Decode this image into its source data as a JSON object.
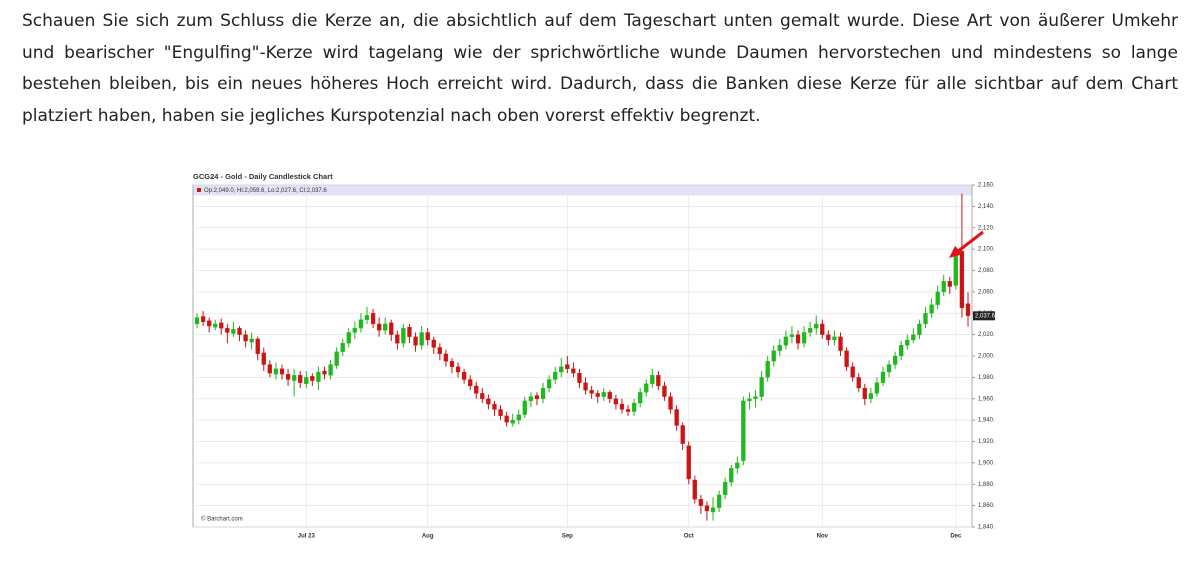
{
  "paragraph": "Schauen Sie sich zum Schluss die Kerze an, die absichtlich auf dem Tageschart unten gemalt wurde. Diese Art von äußerer Umkehr und bearischer \"Engulfing\"-Kerze wird tagelang wie der sprichwörtliche wunde Daumen hervorstechen und mindestens so lange bestehen bleiben, bis ein neues höheres Hoch erreicht wird. Dadurch, dass die Banken diese Kerze für alle sichtbar auf dem Chart platziert haben, haben sie jegliches Kurspotenzial nach oben vorerst effektiv begrenzt.",
  "chart_data": {
    "type": "candlestick",
    "title": "GCG24 - Gold - Daily Candlestick Chart",
    "legend_text": "Op:2,049.0, Hi:2,059.6, Lo:2,027.6, Cl:2,037.6",
    "source": "© Barchart.com",
    "up_color": "#1fb81f",
    "down_color": "#cc1414",
    "grid": true,
    "ylim": [
      1840,
      2160
    ],
    "yticks": [
      {
        "value": 1840,
        "label": "1,840.0"
      },
      {
        "value": 1860,
        "label": "1,860.0"
      },
      {
        "value": 1880,
        "label": "1,880.0"
      },
      {
        "value": 1900,
        "label": "1,900.0"
      },
      {
        "value": 1920,
        "label": "1,920.0"
      },
      {
        "value": 1940,
        "label": "1,940.0"
      },
      {
        "value": 1960,
        "label": "1,960.0"
      },
      {
        "value": 1980,
        "label": "1,980.0"
      },
      {
        "value": 2000,
        "label": "2,000.0"
      },
      {
        "value": 2020,
        "label": "2,020.0"
      },
      {
        "value": 2040,
        "label": "2,040.0"
      },
      {
        "value": 2060,
        "label": "2,060.0"
      },
      {
        "value": 2080,
        "label": "2,080.0"
      },
      {
        "value": 2100,
        "label": "2,100.0"
      },
      {
        "value": 2120,
        "label": "2,120.0"
      },
      {
        "value": 2140,
        "label": "2,140.0"
      },
      {
        "value": 2160,
        "label": "2,160.0"
      }
    ],
    "last_price": {
      "value": 2037.6,
      "label": "2,037.6"
    },
    "categories": [
      null,
      null,
      null,
      null,
      null,
      null,
      null,
      null,
      null,
      null,
      null,
      null,
      null,
      null,
      null,
      null,
      null,
      null,
      "Jul 23",
      null,
      null,
      null,
      null,
      null,
      null,
      null,
      null,
      null,
      null,
      null,
      null,
      null,
      null,
      null,
      null,
      null,
      null,
      null,
      "Aug",
      null,
      null,
      null,
      null,
      null,
      null,
      null,
      null,
      null,
      null,
      null,
      null,
      null,
      null,
      null,
      null,
      null,
      null,
      null,
      null,
      null,
      null,
      "Sep",
      null,
      null,
      null,
      null,
      null,
      null,
      null,
      null,
      null,
      null,
      null,
      null,
      null,
      null,
      null,
      null,
      null,
      null,
      null,
      "Oct",
      null,
      null,
      null,
      null,
      null,
      null,
      null,
      null,
      null,
      null,
      null,
      null,
      null,
      null,
      null,
      null,
      null,
      null,
      null,
      null,
      null,
      "Nov",
      null,
      null,
      null,
      null,
      null,
      null,
      null,
      null,
      null,
      null,
      null,
      null,
      null,
      null,
      null,
      null,
      null,
      null,
      null,
      null,
      null,
      "Dec",
      null,
      null
    ],
    "candles": [
      [
        2030,
        2040,
        2026,
        2036
      ],
      [
        2037,
        2042,
        2028,
        2032
      ],
      [
        2033,
        2036,
        2022,
        2028
      ],
      [
        2027,
        2034,
        2024,
        2030
      ],
      [
        2031,
        2035,
        2020,
        2026
      ],
      [
        2026,
        2030,
        2012,
        2022
      ],
      [
        2021,
        2032,
        2018,
        2025
      ],
      [
        2026,
        2028,
        2014,
        2020
      ],
      [
        2020,
        2024,
        2008,
        2014
      ],
      [
        2013,
        2022,
        2006,
        2016
      ],
      [
        2016,
        2018,
        1996,
        2002
      ],
      [
        2003,
        2008,
        1986,
        1992
      ],
      [
        1992,
        1996,
        1980,
        1984
      ],
      [
        1983,
        1994,
        1978,
        1988
      ],
      [
        1988,
        1992,
        1978,
        1983
      ],
      [
        1983,
        1988,
        1972,
        1978
      ],
      [
        1977,
        1988,
        1962,
        1982
      ],
      [
        1982,
        1986,
        1970,
        1975
      ],
      [
        1974,
        1986,
        1970,
        1980
      ],
      [
        1981,
        1984,
        1972,
        1977
      ],
      [
        1976,
        1990,
        1968,
        1985
      ],
      [
        1986,
        1990,
        1978,
        1983
      ],
      [
        1982,
        1996,
        1978,
        1992
      ],
      [
        1991,
        2008,
        1988,
        2004
      ],
      [
        2004,
        2016,
        2000,
        2012
      ],
      [
        2012,
        2026,
        2008,
        2022
      ],
      [
        2022,
        2032,
        2016,
        2026
      ],
      [
        2026,
        2040,
        2022,
        2034
      ],
      [
        2034,
        2046,
        2030,
        2038
      ],
      [
        2040,
        2044,
        2026,
        2030
      ],
      [
        2030,
        2036,
        2018,
        2024
      ],
      [
        2024,
        2036,
        2020,
        2030
      ],
      [
        2031,
        2034,
        2014,
        2020
      ],
      [
        2020,
        2024,
        2006,
        2012
      ],
      [
        2012,
        2030,
        2008,
        2026
      ],
      [
        2027,
        2030,
        2012,
        2018
      ],
      [
        2018,
        2022,
        2004,
        2010
      ],
      [
        2010,
        2028,
        2006,
        2022
      ],
      [
        2022,
        2026,
        2010,
        2015
      ],
      [
        2015,
        2018,
        2002,
        2008
      ],
      [
        2008,
        2012,
        1996,
        2002
      ],
      [
        2002,
        2006,
        1990,
        1995
      ],
      [
        1995,
        1998,
        1984,
        1990
      ],
      [
        1990,
        1994,
        1980,
        1985
      ],
      [
        1985,
        1988,
        1974,
        1978
      ],
      [
        1978,
        1982,
        1968,
        1972
      ],
      [
        1972,
        1976,
        1960,
        1965
      ],
      [
        1965,
        1970,
        1956,
        1960
      ],
      [
        1960,
        1964,
        1950,
        1955
      ],
      [
        1955,
        1958,
        1944,
        1950
      ],
      [
        1950,
        1954,
        1940,
        1944
      ],
      [
        1944,
        1948,
        1934,
        1938
      ],
      [
        1937,
        1946,
        1934,
        1940
      ],
      [
        1940,
        1950,
        1936,
        1945
      ],
      [
        1945,
        1962,
        1942,
        1958
      ],
      [
        1958,
        1966,
        1952,
        1962
      ],
      [
        1963,
        1966,
        1954,
        1960
      ],
      [
        1960,
        1975,
        1956,
        1970
      ],
      [
        1970,
        1982,
        1966,
        1978
      ],
      [
        1978,
        1990,
        1974,
        1985
      ],
      [
        1985,
        1998,
        1980,
        1990
      ],
      [
        1992,
        2000,
        1984,
        1988
      ],
      [
        1988,
        1994,
        1980,
        1984
      ],
      [
        1984,
        1988,
        1970,
        1975
      ],
      [
        1975,
        1980,
        1964,
        1968
      ],
      [
        1968,
        1972,
        1960,
        1965
      ],
      [
        1965,
        1968,
        1956,
        1962
      ],
      [
        1962,
        1970,
        1958,
        1966
      ],
      [
        1966,
        1968,
        1956,
        1960
      ],
      [
        1960,
        1964,
        1950,
        1955
      ],
      [
        1955,
        1960,
        1946,
        1950
      ],
      [
        1950,
        1954,
        1944,
        1948
      ],
      [
        1948,
        1960,
        1944,
        1956
      ],
      [
        1956,
        1970,
        1952,
        1966
      ],
      [
        1966,
        1978,
        1962,
        1974
      ],
      [
        1974,
        1988,
        1970,
        1982
      ],
      [
        1982,
        1986,
        1968,
        1972
      ],
      [
        1972,
        1976,
        1958,
        1962
      ],
      [
        1962,
        1966,
        1946,
        1950
      ],
      [
        1950,
        1954,
        1930,
        1935
      ],
      [
        1935,
        1938,
        1912,
        1918
      ],
      [
        1916,
        1920,
        1880,
        1885
      ],
      [
        1884,
        1888,
        1862,
        1866
      ],
      [
        1866,
        1870,
        1852,
        1860
      ],
      [
        1860,
        1864,
        1846,
        1855
      ],
      [
        1854,
        1868,
        1846,
        1858
      ],
      [
        1858,
        1874,
        1854,
        1870
      ],
      [
        1870,
        1886,
        1866,
        1882
      ],
      [
        1882,
        1898,
        1878,
        1895
      ],
      [
        1895,
        1906,
        1890,
        1900
      ],
      [
        1902,
        1962,
        1898,
        1958
      ],
      [
        1958,
        1966,
        1950,
        1960
      ],
      [
        1960,
        1968,
        1952,
        1962
      ],
      [
        1962,
        1986,
        1958,
        1980
      ],
      [
        1980,
        2000,
        1976,
        1995
      ],
      [
        1995,
        2010,
        1990,
        2005
      ],
      [
        2005,
        2016,
        2000,
        2010
      ],
      [
        2010,
        2024,
        2006,
        2018
      ],
      [
        2018,
        2028,
        2012,
        2020
      ],
      [
        2020,
        2024,
        2006,
        2012
      ],
      [
        2012,
        2028,
        2008,
        2022
      ],
      [
        2022,
        2032,
        2018,
        2026
      ],
      [
        2026,
        2038,
        2020,
        2030
      ],
      [
        2030,
        2034,
        2016,
        2020
      ],
      [
        2020,
        2024,
        2010,
        2015
      ],
      [
        2015,
        2024,
        2010,
        2018
      ],
      [
        2018,
        2022,
        2000,
        2005
      ],
      [
        2005,
        2008,
        1986,
        1990
      ],
      [
        1990,
        1994,
        1976,
        1980
      ],
      [
        1980,
        1984,
        1966,
        1970
      ],
      [
        1970,
        1974,
        1954,
        1960
      ],
      [
        1960,
        1970,
        1956,
        1965
      ],
      [
        1965,
        1980,
        1962,
        1975
      ],
      [
        1975,
        1990,
        1972,
        1985
      ],
      [
        1985,
        1996,
        1980,
        1992
      ],
      [
        1992,
        2004,
        1988,
        2000
      ],
      [
        2000,
        2014,
        1996,
        2010
      ],
      [
        2010,
        2020,
        2006,
        2015
      ],
      [
        2015,
        2026,
        2012,
        2020
      ],
      [
        2020,
        2034,
        2016,
        2030
      ],
      [
        2030,
        2046,
        2026,
        2040
      ],
      [
        2040,
        2054,
        2036,
        2048
      ],
      [
        2048,
        2066,
        2044,
        2060
      ],
      [
        2060,
        2076,
        2056,
        2070
      ],
      [
        2070,
        2074,
        2058,
        2065
      ],
      [
        2066,
        2100,
        2062,
        2096
      ],
      [
        2098,
        2152,
        2036,
        2045
      ],
      [
        2049,
        2059.6,
        2027.6,
        2037.6
      ]
    ]
  }
}
